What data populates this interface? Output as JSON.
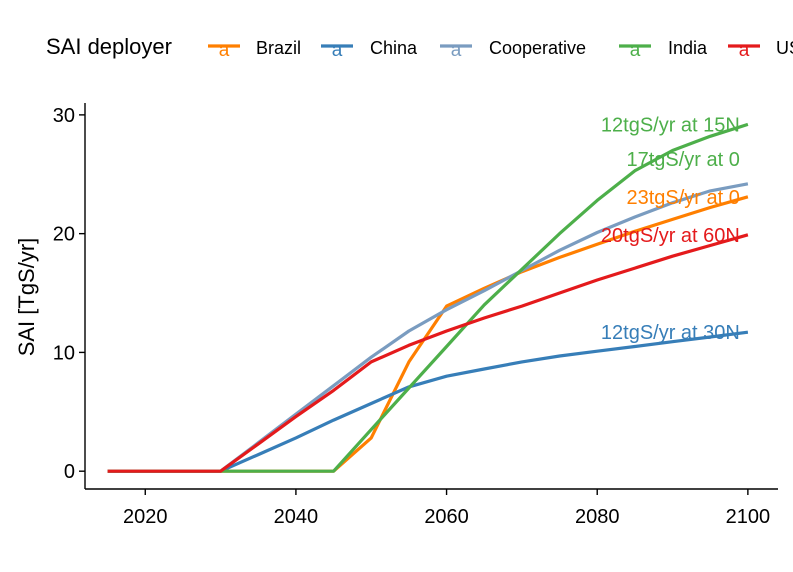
{
  "chart_data": {
    "type": "line",
    "title": "",
    "xlabel": "",
    "ylabel": "SAI [TgS/yr]",
    "xlim": [
      2012,
      2104
    ],
    "ylim": [
      -1.5,
      31
    ],
    "xticks": [
      2020,
      2040,
      2060,
      2080,
      2100
    ],
    "yticks": [
      0,
      10,
      20,
      30
    ],
    "grid": false,
    "legend": {
      "title": "SAI deployer",
      "placement": "top",
      "key_glyph": "a",
      "entries": [
        "Brazil",
        "China",
        "Cooperative",
        "India",
        "US"
      ]
    },
    "series": [
      {
        "name": "Brazil",
        "color": "#ff7f00",
        "x": [
          2015,
          2030,
          2045,
          2050,
          2055,
          2060,
          2065,
          2070,
          2075,
          2080,
          2085,
          2090,
          2095,
          2100
        ],
        "y": [
          0,
          0,
          0,
          2.8,
          9.2,
          13.9,
          15.4,
          16.8,
          18.0,
          19.1,
          20.2,
          21.2,
          22.2,
          23.1
        ]
      },
      {
        "name": "China",
        "color": "#377eb8",
        "x": [
          2015,
          2030,
          2035,
          2040,
          2045,
          2050,
          2055,
          2060,
          2065,
          2070,
          2075,
          2080,
          2085,
          2090,
          2095,
          2100
        ],
        "y": [
          0,
          0,
          1.4,
          2.8,
          4.3,
          5.7,
          7.1,
          8.0,
          8.6,
          9.2,
          9.7,
          10.1,
          10.5,
          10.9,
          11.3,
          11.7
        ]
      },
      {
        "name": "Cooperative",
        "color": "#7a9cc0",
        "x": [
          2015,
          2030,
          2035,
          2040,
          2045,
          2050,
          2055,
          2060,
          2065,
          2070,
          2075,
          2080,
          2085,
          2090,
          2095,
          2100
        ],
        "y": [
          0,
          0,
          2.4,
          4.8,
          7.2,
          9.6,
          11.8,
          13.6,
          15.2,
          16.9,
          18.6,
          20.1,
          21.4,
          22.6,
          23.6,
          24.2
        ]
      },
      {
        "name": "India",
        "color": "#4daf4a",
        "x": [
          2015,
          2030,
          2045,
          2050,
          2055,
          2060,
          2065,
          2070,
          2075,
          2080,
          2085,
          2090,
          2095,
          2100
        ],
        "y": [
          0,
          0,
          0,
          3.5,
          7.0,
          10.5,
          14.0,
          17.0,
          20.0,
          22.8,
          25.3,
          27.0,
          28.2,
          29.2
        ]
      },
      {
        "name": "US",
        "color": "#e41a1c",
        "x": [
          2015,
          2030,
          2035,
          2040,
          2045,
          2050,
          2055,
          2060,
          2065,
          2070,
          2075,
          2080,
          2085,
          2090,
          2095,
          2100
        ],
        "y": [
          0,
          0,
          2.3,
          4.6,
          6.8,
          9.2,
          10.6,
          11.8,
          12.9,
          13.9,
          15.0,
          16.1,
          17.1,
          18.1,
          19.0,
          19.9
        ]
      }
    ],
    "annotations": [
      {
        "text": "12tgS/yr at 15N",
        "color": "#4daf4a",
        "x": 2100,
        "y": 29.2
      },
      {
        "text": "17tgS/yr at 0",
        "color": "#4daf4a",
        "x": 2100,
        "y": 26.3
      },
      {
        "text": "23tgS/yr at 0",
        "color": "#ff7f00",
        "x": 2100,
        "y": 23.1
      },
      {
        "text": "20tgS/yr at 60N",
        "color": "#e41a1c",
        "x": 2100,
        "y": 19.9
      },
      {
        "text": "12tgS/yr at 30N",
        "color": "#377eb8",
        "x": 2100,
        "y": 11.7
      }
    ]
  }
}
